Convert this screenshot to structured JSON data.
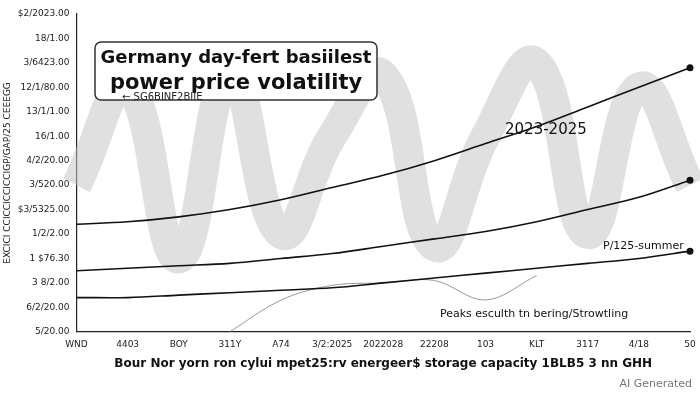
{
  "chart_data": {
    "type": "line",
    "title": [
      "Germany day-fert basiilest",
      "power price volatility"
    ],
    "x_label": "Bour Nor yorn ron cylui mpet25:rv energeer$ storage capacity 1BLB5 3 nn GHH",
    "y_label": "EXCICI CCICCICCICCIGP/GAP/25 CEEEGG",
    "categories": [
      "WND",
      "4403",
      "BOY",
      "311Y",
      "A74",
      "3/2:2025",
      "2022028",
      "22208",
      "103",
      "KLT",
      "3117",
      "4/18",
      "50"
    ],
    "series": [
      {
        "color": "#c4c4c4",
        "line_style": "band",
        "values": [
          6,
          10,
          3,
          10.5,
          4,
          8,
          10.5,
          3.5,
          8,
          11,
          4,
          10,
          6
        ]
      },
      {
        "color": "#111111",
        "line_style": "solid",
        "marker": "end",
        "values": [
          4.4,
          4.5,
          4.7,
          5.0,
          5.4,
          5.9,
          6.4,
          7.0,
          7.7,
          8.4,
          9.2,
          10.0,
          10.8
        ]
      },
      {
        "color": "#111111",
        "line_style": "solid",
        "marker": "end",
        "values": [
          2.5,
          2.6,
          2.7,
          2.8,
          3.0,
          3.2,
          3.5,
          3.8,
          4.1,
          4.5,
          5.0,
          5.5,
          6.2
        ]
      },
      {
        "color": "#111111",
        "line_style": "solid",
        "marker": "end",
        "values": [
          1.4,
          1.4,
          1.5,
          1.6,
          1.7,
          1.8,
          2.0,
          2.2,
          2.4,
          2.6,
          2.8,
          3.0,
          3.3
        ]
      },
      {
        "color": "#9a9a9a",
        "line_style": "thin",
        "values": [
          null,
          null,
          null,
          0,
          1.3,
          1.9,
          2.0,
          2.1,
          1.3,
          2.3,
          null,
          null,
          null
        ]
      }
    ],
    "ylim": [
      0,
      13
    ],
    "yticks": [
      {
        "value": 0,
        "label": "5/20.00"
      },
      {
        "value": 1,
        "label": "6/2/20.00"
      },
      {
        "value": 2,
        "label": "3 8/2.00"
      },
      {
        "value": 3,
        "label": "1 $76.30"
      },
      {
        "value": 4,
        "label": "1/2/2.00"
      },
      {
        "value": 5,
        "label": "$3/5325.00"
      },
      {
        "value": 6,
        "label": "3/520.00"
      },
      {
        "value": 7,
        "label": "4/2/20.00"
      },
      {
        "value": 8,
        "label": "16/1.00"
      },
      {
        "value": 9,
        "label": "13/1/1.00"
      },
      {
        "value": 10,
        "label": "12/1/80.00"
      },
      {
        "value": 11,
        "label": "3/6423.00"
      },
      {
        "value": 12,
        "label": "18/1.00"
      },
      {
        "value": 13,
        "label": "$2/2023.00"
      }
    ],
    "grid": false,
    "annotations": [
      "2023-2025",
      "P/125-summer",
      "Peaks esculth tn bering/Strowtling",
      "← SG6BINF2BIIE",
      "AI Generated"
    ]
  }
}
